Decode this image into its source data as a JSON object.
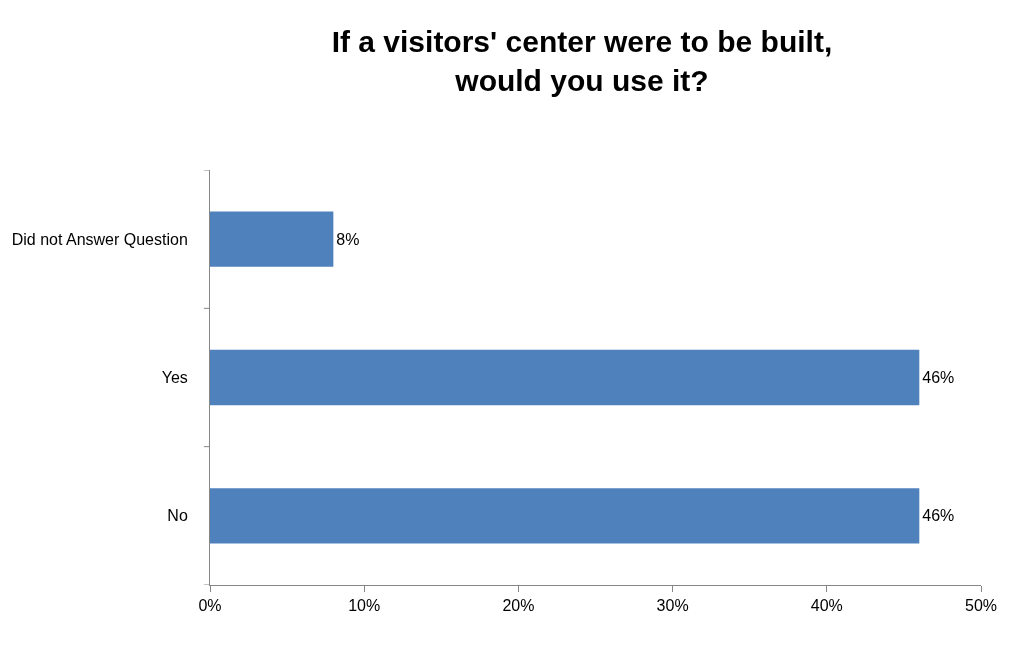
{
  "chart_data": {
    "type": "bar",
    "orientation": "horizontal",
    "title": "If a visitors' center were to be built,\nwould you use it?",
    "categories": [
      "Did not Answer Question",
      "Yes",
      "No"
    ],
    "values": [
      8,
      46,
      46
    ],
    "value_labels": [
      "8%",
      "46%",
      "46%"
    ],
    "color": "#4f81bd",
    "xlim": [
      0,
      50
    ],
    "xticks": [
      {
        "value": 0,
        "label": "0%"
      },
      {
        "value": 10,
        "label": "10%"
      },
      {
        "value": 20,
        "label": "20%"
      },
      {
        "value": 30,
        "label": "30%"
      },
      {
        "value": 40,
        "label": "40%"
      },
      {
        "value": 50,
        "label": "50%"
      }
    ],
    "legend": false
  }
}
